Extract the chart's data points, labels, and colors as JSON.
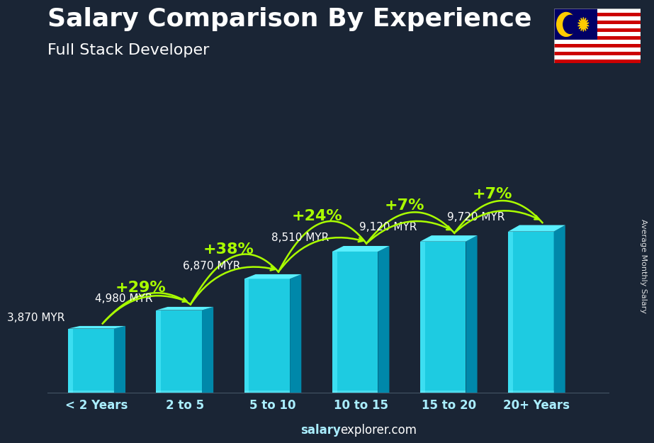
{
  "title": "Salary Comparison By Experience",
  "subtitle": "Full Stack Developer",
  "ylabel": "Average Monthly Salary",
  "watermark_bold": "salary",
  "watermark_normal": "explorer.com",
  "categories": [
    "< 2 Years",
    "2 to 5",
    "5 to 10",
    "10 to 15",
    "15 to 20",
    "20+ Years"
  ],
  "values": [
    3870,
    4980,
    6870,
    8510,
    9120,
    9720
  ],
  "bar_front": "#1ecbe1",
  "bar_top": "#5af0ff",
  "bar_side": "#0088aa",
  "bar_shine": "#55ddee",
  "bg_color": "#1a2535",
  "text_white": "#ffffff",
  "text_cyan": "#aaeeff",
  "text_green": "#aaff00",
  "title_fontsize": 26,
  "subtitle_fontsize": 16,
  "tick_fontsize": 12,
  "val_fontsize": 11,
  "pct_fontsize": 16,
  "pct_labels": [
    "+29%",
    "+38%",
    "+24%",
    "+7%",
    "+7%"
  ],
  "value_labels": [
    "3,870 MYR",
    "4,980 MYR",
    "6,870 MYR",
    "8,510 MYR",
    "9,120 MYR",
    "9,720 MYR"
  ]
}
